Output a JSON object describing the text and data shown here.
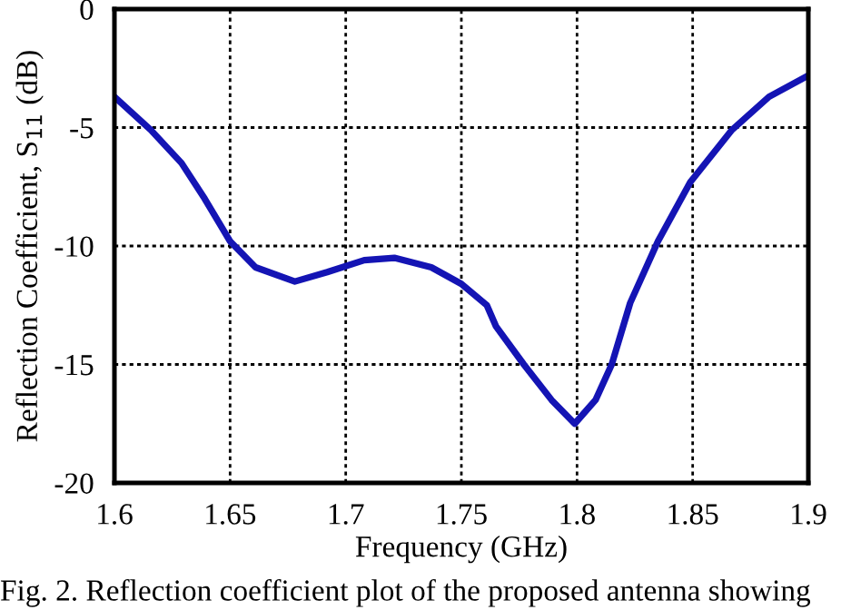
{
  "chart_data": {
    "type": "line",
    "xlabel": "Frequency (GHz)",
    "ylabel": "Reflection Coefficient, S$_{11}$ (dB)",
    "annotations": [
      "Fig. 2. Reflection coefficient plot of the proposed antenna showing"
    ],
    "series": [
      {
        "color": "#1414b4",
        "x": [
          1.6,
          1.6157,
          1.629,
          1.639,
          1.65,
          1.661,
          1.678,
          1.692,
          1.708,
          1.721,
          1.737,
          1.75,
          1.761,
          1.765,
          1.777,
          1.789,
          1.799,
          1.808,
          1.815,
          1.823,
          1.835,
          1.849,
          1.867,
          1.883,
          1.9
        ],
        "values": [
          -3.7,
          -5.1,
          -6.5,
          -8.0,
          -9.8,
          -10.9,
          -11.5,
          -11.1,
          -10.6,
          -10.5,
          -10.9,
          -11.6,
          -12.5,
          -13.4,
          -15.0,
          -16.5,
          -17.5,
          -16.5,
          -15.0,
          -12.4,
          -9.8,
          -7.3,
          -5.1,
          -3.7,
          -2.8
        ]
      }
    ],
    "xlim": [
      1.6,
      1.9
    ],
    "xticks": [
      1.6,
      1.65,
      1.7,
      1.75,
      1.8,
      1.85,
      1.9
    ],
    "ylim": [
      -20,
      0
    ],
    "yticks": [
      -20,
      -15,
      -10,
      -5,
      0
    ],
    "grid": true,
    "line_style": "solid",
    "marker": "none"
  }
}
